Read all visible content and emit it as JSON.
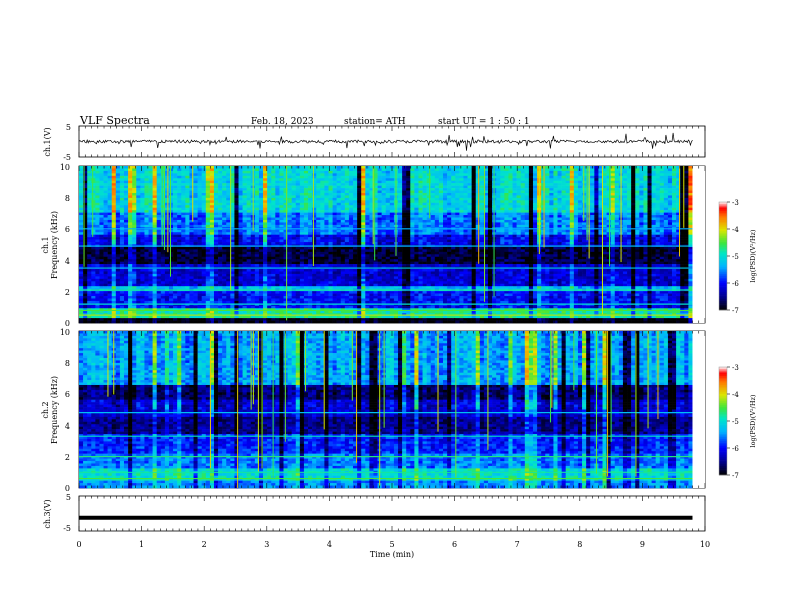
{
  "header": {
    "title": "VLF  Spectra",
    "date": "Feb. 18, 2023",
    "station": "station= ATH",
    "start": "start  UT  =    1  : 50 : 1"
  },
  "chart_data": [
    {
      "type": "line",
      "name": "ch1-waveform",
      "ylabel": "ch.1(V)",
      "ylim": [
        -5,
        5
      ],
      "yticks": [
        "5",
        "-5"
      ],
      "xlim": [
        0,
        10
      ],
      "baseline": 0,
      "x_end": 9.8
    },
    {
      "type": "heatmap",
      "name": "ch1-spectrogram",
      "ylabel": "ch.1\nFrequency (kHz)",
      "ylim": [
        0,
        10
      ],
      "yticks": [
        "0",
        "2",
        "4",
        "6",
        "8",
        "10"
      ],
      "xlim": [
        0,
        10
      ],
      "x_end": 9.8,
      "colorbar": {
        "label": "log(PSD)(V²/Hz)",
        "min": -7,
        "max": -3,
        "ticks": [
          "-3",
          "-4",
          "-5",
          "-6",
          "-7"
        ]
      },
      "bands": [
        {
          "f0": 0.0,
          "f1": 0.3,
          "level": -7.0
        },
        {
          "f0": 0.3,
          "f1": 0.9,
          "level": -4.8
        },
        {
          "f0": 0.9,
          "f1": 2.0,
          "level": -6.0
        },
        {
          "f0": 2.0,
          "f1": 2.3,
          "level": -5.3
        },
        {
          "f0": 2.3,
          "f1": 3.8,
          "level": -6.2
        },
        {
          "f0": 3.8,
          "f1": 4.9,
          "level": -6.8
        },
        {
          "f0": 4.9,
          "f1": 5.6,
          "level": -6.1
        },
        {
          "f0": 5.6,
          "f1": 7.0,
          "level": -5.6
        },
        {
          "f0": 7.0,
          "f1": 10.0,
          "level": -5.1
        }
      ],
      "lines": [
        {
          "f": 0.5,
          "level": -4.2
        },
        {
          "f": 0.8,
          "level": -4.5
        },
        {
          "f": 1.2,
          "level": -5.0
        },
        {
          "f": 2.1,
          "level": -4.8
        },
        {
          "f": 3.5,
          "level": -5.2
        },
        {
          "f": 4.9,
          "level": -5.2
        },
        {
          "f": 6.0,
          "level": -5.4
        }
      ]
    },
    {
      "type": "heatmap",
      "name": "ch2-spectrogram",
      "ylabel": "ch.2\nFrequency (kHz)",
      "ylim": [
        0,
        10
      ],
      "yticks": [
        "0",
        "2",
        "4",
        "6",
        "8",
        "10"
      ],
      "xlim": [
        0,
        10
      ],
      "x_end": 9.8,
      "colorbar": {
        "label": "log(PSD)(V²/Hz)",
        "min": -7,
        "max": -3,
        "ticks": [
          "-3",
          "-4",
          "-5",
          "-6",
          "-7"
        ]
      },
      "bands": [
        {
          "f0": 0.0,
          "f1": 0.4,
          "level": -5.5
        },
        {
          "f0": 0.4,
          "f1": 1.2,
          "level": -5.0
        },
        {
          "f0": 1.2,
          "f1": 2.2,
          "level": -5.6
        },
        {
          "f0": 2.2,
          "f1": 3.4,
          "level": -5.9
        },
        {
          "f0": 3.4,
          "f1": 4.6,
          "level": -6.5
        },
        {
          "f0": 4.6,
          "f1": 5.6,
          "level": -6.2
        },
        {
          "f0": 5.6,
          "f1": 6.6,
          "level": -6.6
        },
        {
          "f0": 6.6,
          "f1": 10.0,
          "level": -5.4
        }
      ],
      "lines": [
        {
          "f": 0.6,
          "level": -4.5
        },
        {
          "f": 1.0,
          "level": -4.8
        },
        {
          "f": 2.0,
          "level": -4.7
        },
        {
          "f": 3.3,
          "level": -4.9
        },
        {
          "f": 4.8,
          "level": -5.3
        }
      ]
    },
    {
      "type": "line",
      "name": "ch3-waveform",
      "ylabel": "ch.3(V)",
      "ylim": [
        -5,
        5
      ],
      "yticks": [
        "5",
        "-5"
      ],
      "xlim": [
        0,
        10
      ],
      "baseline": -1.2,
      "x_end": 9.8
    }
  ],
  "xaxis": {
    "label": "Time  (min)",
    "ticks": [
      "0",
      "1",
      "2",
      "3",
      "4",
      "5",
      "6",
      "7",
      "8",
      "9",
      "10"
    ]
  }
}
